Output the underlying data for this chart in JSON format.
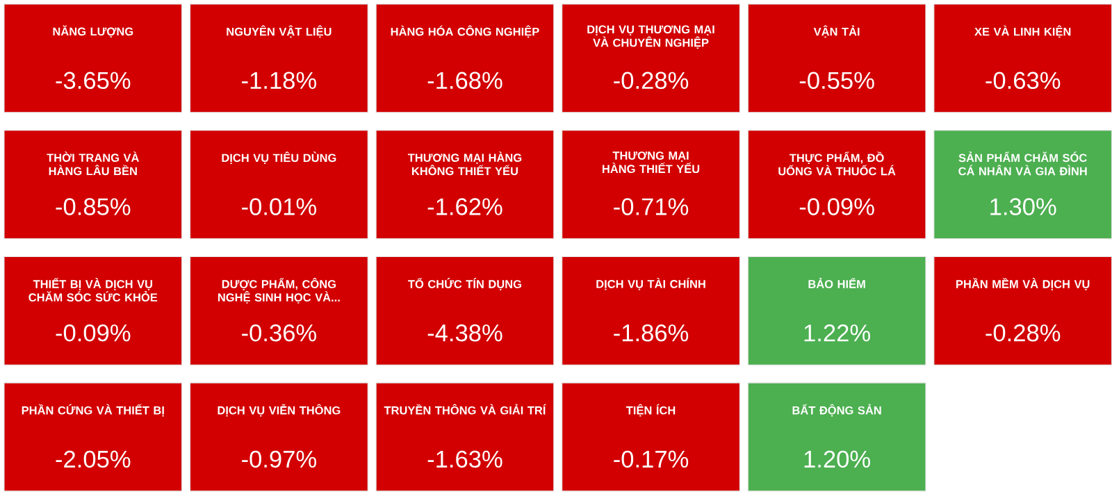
{
  "chart_data": {
    "type": "other",
    "categories": [
      "NĂNG LƯỢNG",
      "NGUYÊN VẬT LIỆU",
      "HÀNG HÓA CÔNG NGHIỆP",
      "DỊCH VỤ THƯƠNG MẠI VÀ CHUYÊN NGHIỆP",
      "VẬN TẢI",
      "XE VÀ LINH KIỆN",
      "THỜI TRANG VÀ HÀNG LÂU BỀN",
      "DỊCH VỤ TIÊU DÙNG",
      "THƯƠNG MẠI HÀNG KHÔNG THIẾT YẾU",
      "THƯƠNG MẠI HÀNG THIẾT YẾU",
      "THỰC PHẨM, ĐỒ UỐNG VÀ THUỐC LÁ",
      "SẢN PHẨM CHĂM SÓC CÁ NHÂN VÀ GIA ĐÌNH",
      "THIẾT BỊ VÀ DỊCH VỤ CHĂM SÓC SỨC KHỎE",
      "DƯỢC PHẨM, CÔNG NGHỆ SINH HỌC VÀ...",
      "TỔ CHỨC TÍN DỤNG",
      "DỊCH VỤ TÀI CHÍNH",
      "BẢO HIỂM",
      "PHẦN MỀM VÀ DỊCH VỤ",
      "PHẦN CỨNG VÀ THIẾT BỊ",
      "DỊCH VỤ VIỄN THÔNG",
      "TRUYỀN THÔNG VÀ GIẢI TRÍ",
      "TIỆN ÍCH",
      "BẤT ĐỘNG SẢN"
    ],
    "values": [
      -3.65,
      -1.18,
      -1.68,
      -0.28,
      -0.55,
      -0.63,
      -0.85,
      -0.01,
      -1.62,
      -0.71,
      -0.09,
      1.3,
      -0.09,
      -0.36,
      -4.38,
      -1.86,
      1.22,
      -0.28,
      -2.05,
      -0.97,
      -1.63,
      -0.17,
      1.2
    ],
    "value_labels": [
      "-3.65%",
      "-1.18%",
      "-1.68%",
      "-0.28%",
      "-0.55%",
      "-0.63%",
      "-0.85%",
      "-0.01%",
      "-1.62%",
      "-0.71%",
      "-0.09%",
      "1.30%",
      "-0.09%",
      "-0.36%",
      "-4.38%",
      "-1.86%",
      "1.22%",
      "-0.28%",
      "-2.05%",
      "-0.97%",
      "-1.63%",
      "-0.17%",
      "1.20%"
    ]
  }
}
